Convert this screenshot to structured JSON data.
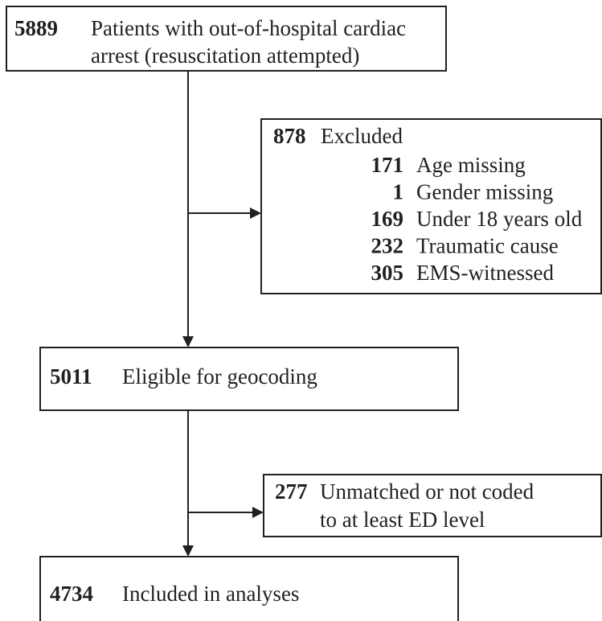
{
  "nodes": [
    {
      "count": 5889,
      "label": [
        "Patients with out-of-hospital cardiac",
        "arrest (resuscitation attempted)"
      ]
    },
    {
      "count": 878,
      "label": [
        "Excluded"
      ],
      "items": [
        {
          "count": 171,
          "label": "Age missing"
        },
        {
          "count": 1,
          "label": "Gender missing"
        },
        {
          "count": 169,
          "label": "Under 18 years old"
        },
        {
          "count": 232,
          "label": "Traumatic cause"
        },
        {
          "count": 305,
          "label": "EMS-witnessed"
        }
      ]
    },
    {
      "count": 5011,
      "label": [
        "Eligible for geocoding"
      ]
    },
    {
      "count": 277,
      "label": [
        "Unmatched or not coded",
        "to at least ED level"
      ]
    },
    {
      "count": 4734,
      "label": [
        "Included in analyses"
      ]
    }
  ]
}
